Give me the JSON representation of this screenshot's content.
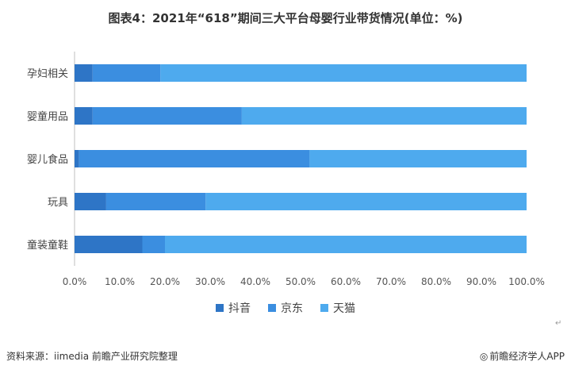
{
  "title": "图表4：2021年“618”期间三大平台母婴行业带货情况(单位：%)",
  "chart_data": {
    "type": "bar",
    "orientation": "horizontal",
    "stacked": true,
    "categories": [
      "孕妇相关",
      "婴童用品",
      "婴儿食品",
      "玩具",
      "童装童鞋"
    ],
    "series": [
      {
        "name": "抖音",
        "values": [
          4,
          4,
          1,
          7,
          15
        ],
        "color": "#2e75c6"
      },
      {
        "name": "京东",
        "values": [
          15,
          33,
          51,
          22,
          5
        ],
        "color": "#3b8ee0"
      },
      {
        "name": "天猫",
        "values": [
          81,
          63,
          48,
          71,
          80
        ],
        "color": "#4eaaee"
      }
    ],
    "xlim": [
      0,
      100
    ],
    "xticks": [
      "0.0%",
      "10.0%",
      "20.0%",
      "30.0%",
      "40.0%",
      "50.0%",
      "60.0%",
      "70.0%",
      "80.0%",
      "90.0%",
      "100.0%"
    ],
    "grid": false,
    "legend": "bottom"
  },
  "footer": {
    "source": "资料来源：iimedia 前瞻产业研究院整理",
    "brand_symbol": "◎",
    "brand": "前瞻经济学人APP"
  },
  "return_symbol": "↵"
}
